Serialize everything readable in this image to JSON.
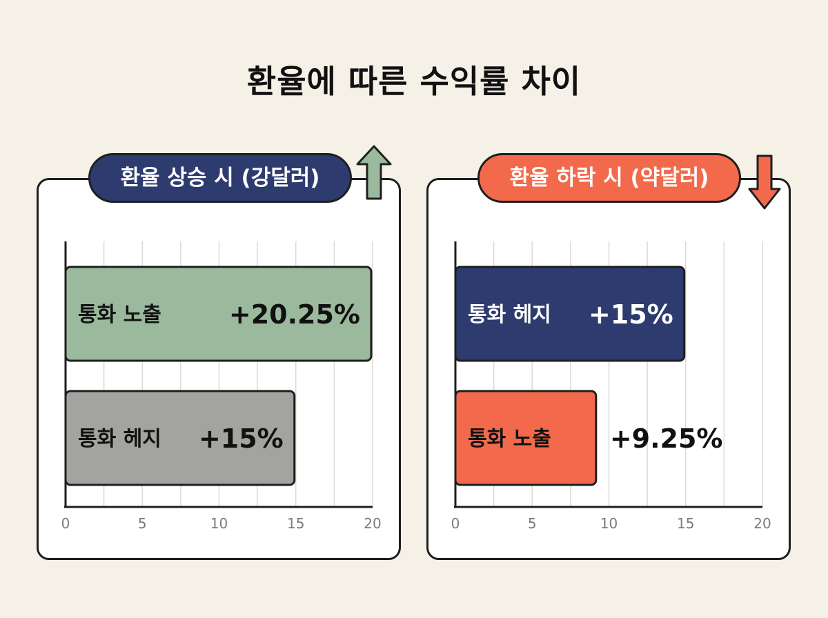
{
  "title": "환율에 따른 수익률 차이",
  "colors": {
    "background": "#f5f1e7",
    "navy": "#2d3b6e",
    "coral": "#f26a4b",
    "sage": "#9bba9d",
    "gray": "#a3a39f"
  },
  "icons": {
    "up": "arrow-up-icon",
    "down": "arrow-down-icon"
  },
  "chart_data": [
    {
      "type": "bar",
      "orientation": "horizontal",
      "title": "환율 상승 시 (강달러)",
      "categories": [
        "통화 노출",
        "통화 헤지"
      ],
      "values": [
        20.25,
        15
      ],
      "value_labels": [
        "+20.25%",
        "+15%"
      ],
      "bar_colors": [
        "#9bba9d",
        "#a3a39f"
      ],
      "label_colors": [
        "#111111",
        "#111111"
      ],
      "xlim": [
        0,
        20
      ],
      "xticks": [
        "0",
        "5",
        "10",
        "15",
        "20"
      ],
      "grid": true
    },
    {
      "type": "bar",
      "orientation": "horizontal",
      "title": "환율 하락 시 (약달러)",
      "categories": [
        "통화 헤지",
        "통화 노출"
      ],
      "values": [
        15,
        9.25
      ],
      "value_labels": [
        "+15%",
        "+9.25%"
      ],
      "bar_colors": [
        "#2d3b6e",
        "#f26a4b"
      ],
      "label_colors": [
        "#ffffff",
        "#111111"
      ],
      "xlim": [
        0,
        20
      ],
      "xticks": [
        "0",
        "5",
        "10",
        "15",
        "20"
      ],
      "grid": true
    }
  ]
}
